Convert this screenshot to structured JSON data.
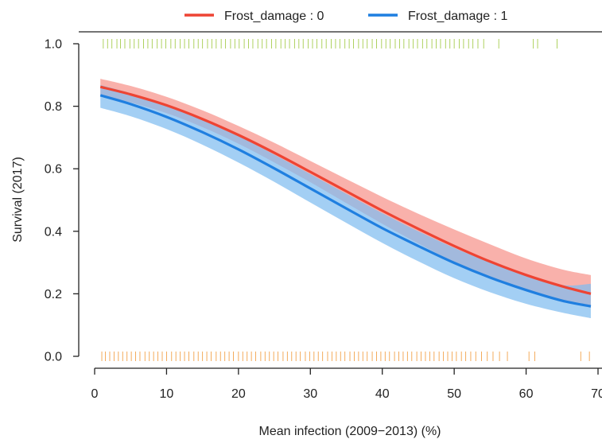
{
  "chart_data": {
    "type": "line",
    "title": "",
    "xlabel": "Mean infection (2009−2013) (%)",
    "ylabel": "Survival (2017)",
    "xlim": [
      0,
      70
    ],
    "ylim": [
      0,
      1
    ],
    "x_ticks": [
      0,
      10,
      20,
      30,
      40,
      50,
      60,
      70
    ],
    "x_tick_labels": [
      "0",
      "10",
      "20",
      "30",
      "40",
      "50",
      "60",
      "70"
    ],
    "y_ticks": [
      0.0,
      0.2,
      0.4,
      0.6,
      0.8,
      1.0
    ],
    "y_tick_labels": [
      "0.0",
      "0.2",
      "0.4",
      "0.6",
      "0.8",
      "1.0"
    ],
    "grid": false,
    "legend_position": "top",
    "series": [
      {
        "name": "Frost_damage : 0",
        "color": "#ee4433",
        "band_color": "#f6938a",
        "x": [
          0.8,
          5,
          10,
          15,
          20,
          25,
          30,
          35,
          40,
          45,
          50,
          55,
          60,
          65,
          69
        ],
        "y": [
          0.862,
          0.838,
          0.803,
          0.759,
          0.708,
          0.651,
          0.59,
          0.528,
          0.466,
          0.408,
          0.353,
          0.303,
          0.26,
          0.224,
          0.2
        ],
        "lower": [
          0.835,
          0.812,
          0.778,
          0.733,
          0.68,
          0.62,
          0.557,
          0.49,
          0.424,
          0.361,
          0.302,
          0.254,
          0.212,
          0.178,
          0.155
        ],
        "upper": [
          0.888,
          0.865,
          0.83,
          0.787,
          0.737,
          0.683,
          0.625,
          0.567,
          0.51,
          0.456,
          0.406,
          0.358,
          0.313,
          0.278,
          0.26
        ]
      },
      {
        "name": "Frost_damage : 1",
        "color": "#1f7fe0",
        "band_color": "#7fbdf0",
        "x": [
          0.8,
          5,
          10,
          15,
          20,
          25,
          30,
          35,
          40,
          45,
          50,
          55,
          60,
          65,
          69
        ],
        "y": [
          0.835,
          0.807,
          0.766,
          0.717,
          0.662,
          0.601,
          0.537,
          0.473,
          0.41,
          0.353,
          0.299,
          0.252,
          0.212,
          0.178,
          0.16
        ],
        "lower": [
          0.795,
          0.768,
          0.727,
          0.677,
          0.62,
          0.558,
          0.492,
          0.427,
          0.363,
          0.304,
          0.25,
          0.205,
          0.168,
          0.14,
          0.122
        ],
        "upper": [
          0.868,
          0.842,
          0.805,
          0.758,
          0.705,
          0.645,
          0.583,
          0.52,
          0.458,
          0.4,
          0.347,
          0.3,
          0.26,
          0.228,
          0.232
        ]
      }
    ],
    "rug_top": {
      "y": 1,
      "color": "#a6cc4e",
      "x": [
        1.2,
        1.8,
        2.4,
        3.1,
        3.6,
        4.2,
        4.9,
        5.5,
        6.1,
        6.8,
        7.4,
        8.0,
        8.7,
        9.3,
        9.9,
        10.6,
        11.2,
        11.9,
        12.5,
        13.1,
        13.8,
        14.4,
        15.0,
        15.7,
        16.3,
        16.9,
        17.6,
        18.2,
        18.9,
        19.5,
        20.1,
        20.8,
        21.4,
        22.0,
        22.7,
        23.3,
        23.9,
        24.6,
        25.2,
        25.9,
        26.5,
        27.1,
        27.8,
        28.4,
        29.0,
        29.7,
        30.3,
        30.9,
        31.6,
        32.2,
        32.9,
        33.5,
        34.1,
        34.8,
        35.4,
        36.0,
        36.7,
        37.3,
        37.9,
        38.6,
        39.2,
        39.9,
        40.5,
        41.1,
        41.8,
        42.4,
        43.0,
        43.7,
        44.3,
        44.9,
        45.6,
        46.2,
        46.9,
        47.5,
        48.1,
        48.8,
        49.4,
        50.0,
        50.7,
        51.3,
        52.0,
        52.6,
        53.3,
        54.1,
        56.2,
        61.0,
        61.6,
        64.3
      ]
    },
    "rug_bottom": {
      "y": 0,
      "color": "#f2a24a",
      "x": [
        1.0,
        1.5,
        2.1,
        2.7,
        3.3,
        3.9,
        4.5,
        5.1,
        5.7,
        6.3,
        7.0,
        7.6,
        8.2,
        8.8,
        9.4,
        10.0,
        10.7,
        11.3,
        11.9,
        12.5,
        13.1,
        13.8,
        14.4,
        15.0,
        15.6,
        16.2,
        16.9,
        17.5,
        18.1,
        18.7,
        19.3,
        20.0,
        20.6,
        21.2,
        21.8,
        22.4,
        23.1,
        23.7,
        24.3,
        24.9,
        25.5,
        26.2,
        26.8,
        27.4,
        28.0,
        28.6,
        29.3,
        29.9,
        30.5,
        31.1,
        31.7,
        32.4,
        33.0,
        33.6,
        34.2,
        34.8,
        35.5,
        36.1,
        36.7,
        37.3,
        37.9,
        38.6,
        39.2,
        39.8,
        40.4,
        41.0,
        41.7,
        42.3,
        42.9,
        43.5,
        44.1,
        44.8,
        45.4,
        46.0,
        46.6,
        47.2,
        47.9,
        48.5,
        49.1,
        49.7,
        50.3,
        51.0,
        51.6,
        52.3,
        53.0,
        53.8,
        54.6,
        55.4,
        56.3,
        57.4,
        60.4,
        61.2,
        67.6,
        68.8
      ]
    }
  }
}
